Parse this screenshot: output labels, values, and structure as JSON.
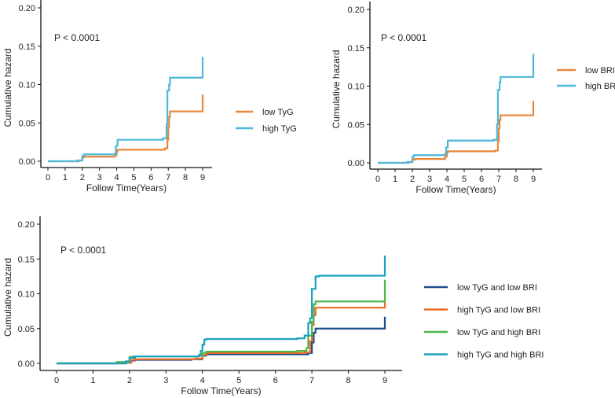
{
  "chart_data": [
    {
      "type": "line",
      "step": true,
      "title": "",
      "annotation": "P < 0.0001",
      "xlabel": "Follow Time(Years)",
      "ylabel": "Cumulative hazard",
      "xlim": [
        0,
        9
      ],
      "ylim": [
        0,
        0.2
      ],
      "xticks": [
        "0",
        "1",
        "2",
        "3",
        "4",
        "5",
        "6",
        "7",
        "8",
        "9"
      ],
      "yticks": [
        "0.00",
        "0.05",
        "0.10",
        "0.15",
        "0.20"
      ],
      "legend_position": "right",
      "series": [
        {
          "name": "low TyG",
          "color": "#E8873A",
          "points": [
            [
              0,
              0
            ],
            [
              1.8,
              0.001
            ],
            [
              2.0,
              0.005
            ],
            [
              2.1,
              0.006
            ],
            [
              3.9,
              0.008
            ],
            [
              4.0,
              0.013
            ],
            [
              4.05,
              0.015
            ],
            [
              6.8,
              0.017
            ],
            [
              6.95,
              0.028
            ],
            [
              7.0,
              0.045
            ],
            [
              7.05,
              0.058
            ],
            [
              7.1,
              0.065
            ],
            [
              9,
              0.065
            ],
            [
              9,
              0.087
            ]
          ]
        },
        {
          "name": "high TyG",
          "color": "#4DB8D9",
          "points": [
            [
              0,
              0
            ],
            [
              1.7,
              0.001
            ],
            [
              2.0,
              0.007
            ],
            [
              2.1,
              0.009
            ],
            [
              3.9,
              0.01
            ],
            [
              3.95,
              0.02
            ],
            [
              4.05,
              0.028
            ],
            [
              6.7,
              0.03
            ],
            [
              6.9,
              0.048
            ],
            [
              6.95,
              0.092
            ],
            [
              7.05,
              0.1
            ],
            [
              7.1,
              0.109
            ],
            [
              9,
              0.109
            ],
            [
              9,
              0.136
            ]
          ]
        }
      ]
    },
    {
      "type": "line",
      "step": true,
      "title": "",
      "annotation": "P < 0.0001",
      "xlabel": "Follow Time(Years)",
      "ylabel": "Cumulative hazard",
      "xlim": [
        0,
        9
      ],
      "ylim": [
        0,
        0.2
      ],
      "xticks": [
        "0",
        "1",
        "2",
        "3",
        "4",
        "5",
        "6",
        "7",
        "8",
        "9"
      ],
      "yticks": [
        "0.00",
        "0.05",
        "0.10",
        "0.15",
        "0.20"
      ],
      "legend_position": "right",
      "series": [
        {
          "name": "low BRI",
          "color": "#E8873A",
          "points": [
            [
              0,
              0
            ],
            [
              1.8,
              0.001
            ],
            [
              2.0,
              0.004
            ],
            [
              2.1,
              0.005
            ],
            [
              3.9,
              0.008
            ],
            [
              4.0,
              0.013
            ],
            [
              4.05,
              0.015
            ],
            [
              6.8,
              0.016
            ],
            [
              6.95,
              0.028
            ],
            [
              7.0,
              0.045
            ],
            [
              7.05,
              0.056
            ],
            [
              7.1,
              0.062
            ],
            [
              9,
              0.062
            ],
            [
              9,
              0.081
            ]
          ]
        },
        {
          "name": "high BRI",
          "color": "#4DB8D9",
          "points": [
            [
              0,
              0
            ],
            [
              1.7,
              0.001
            ],
            [
              2.0,
              0.008
            ],
            [
              2.1,
              0.01
            ],
            [
              3.9,
              0.012
            ],
            [
              3.95,
              0.02
            ],
            [
              4.05,
              0.029
            ],
            [
              6.7,
              0.03
            ],
            [
              6.9,
              0.05
            ],
            [
              6.95,
              0.095
            ],
            [
              7.05,
              0.105
            ],
            [
              7.1,
              0.112
            ],
            [
              9,
              0.112
            ],
            [
              9,
              0.142
            ]
          ]
        }
      ]
    },
    {
      "type": "line",
      "step": true,
      "title": "",
      "annotation": "P < 0.0001",
      "xlabel": "Follow Time(Years)",
      "ylabel": "Cumulative hazard",
      "xlim": [
        0,
        9
      ],
      "ylim": [
        0,
        0.2
      ],
      "xticks": [
        "0",
        "1",
        "2",
        "3",
        "4",
        "5",
        "6",
        "7",
        "8",
        "9"
      ],
      "yticks": [
        "0.00",
        "0.05",
        "0.10",
        "0.15",
        "0.20"
      ],
      "legend_position": "right",
      "series": [
        {
          "name": "low TyG and low BRI",
          "color": "#1F4E8C",
          "points": [
            [
              0,
              0
            ],
            [
              1.9,
              0.001
            ],
            [
              2.05,
              0.004
            ],
            [
              2.15,
              0.005
            ],
            [
              3.7,
              0.006
            ],
            [
              4.0,
              0.011
            ],
            [
              4.1,
              0.013
            ],
            [
              6.9,
              0.015
            ],
            [
              7.0,
              0.03
            ],
            [
              7.05,
              0.044
            ],
            [
              7.1,
              0.05
            ],
            [
              9,
              0.05
            ],
            [
              9,
              0.067
            ]
          ]
        },
        {
          "name": "high TyG and low BRI",
          "color": "#F26B21",
          "points": [
            [
              0,
              0
            ],
            [
              1.9,
              0.001
            ],
            [
              2.05,
              0.005
            ],
            [
              2.15,
              0.006
            ],
            [
              3.8,
              0.007
            ],
            [
              4.0,
              0.012
            ],
            [
              4.1,
              0.015
            ],
            [
              6.8,
              0.016
            ],
            [
              6.95,
              0.032
            ],
            [
              7.0,
              0.055
            ],
            [
              7.05,
              0.069
            ],
            [
              7.1,
              0.08
            ],
            [
              9,
              0.08
            ],
            [
              9,
              0.088
            ]
          ]
        },
        {
          "name": "low TyG and high BRI",
          "color": "#4CB74A",
          "points": [
            [
              0,
              0
            ],
            [
              1.65,
              0.002
            ],
            [
              2.0,
              0.009
            ],
            [
              2.1,
              0.01
            ],
            [
              3.9,
              0.011
            ],
            [
              4.0,
              0.015
            ],
            [
              4.1,
              0.017
            ],
            [
              6.6,
              0.018
            ],
            [
              6.85,
              0.022
            ],
            [
              6.9,
              0.04
            ],
            [
              7.0,
              0.06
            ],
            [
              7.05,
              0.085
            ],
            [
              7.1,
              0.089
            ],
            [
              9,
              0.089
            ],
            [
              9,
              0.12
            ]
          ]
        },
        {
          "name": "high TyG and high BRI",
          "color": "#1AA1BF",
          "points": [
            [
              0,
              0
            ],
            [
              1.9,
              0.003
            ],
            [
              2.0,
              0.008
            ],
            [
              2.15,
              0.01
            ],
            [
              3.9,
              0.012
            ],
            [
              3.95,
              0.018
            ],
            [
              4.0,
              0.027
            ],
            [
              4.05,
              0.034
            ],
            [
              4.1,
              0.035
            ],
            [
              6.6,
              0.036
            ],
            [
              6.8,
              0.04
            ],
            [
              6.9,
              0.058
            ],
            [
              6.95,
              0.065
            ],
            [
              7.0,
              0.107
            ],
            [
              7.1,
              0.125
            ],
            [
              7.2,
              0.126
            ],
            [
              9,
              0.126
            ],
            [
              9,
              0.155
            ]
          ]
        }
      ]
    }
  ]
}
